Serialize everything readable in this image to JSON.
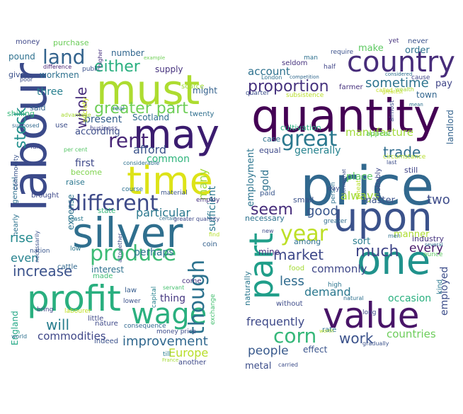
{
  "left_cloud": {
    "words": [
      {
        "text": "labour",
        "color": "#3b4a8a"
      },
      {
        "text": "silver",
        "color": "#2f6f8e"
      },
      {
        "text": "profit",
        "color": "#29af7f"
      },
      {
        "text": "must",
        "color": "#addc30"
      },
      {
        "text": "may",
        "color": "#3b1c6f"
      },
      {
        "text": "time",
        "color": "#dde318"
      },
      {
        "text": "wage",
        "color": "#2bb07f"
      },
      {
        "text": "produce",
        "color": "#3cbb75"
      },
      {
        "text": "different",
        "color": "#3e4a89"
      },
      {
        "text": "land",
        "color": "#33638d"
      },
      {
        "text": "rent",
        "color": "#482677"
      },
      {
        "text": "though",
        "color": "#2c728e"
      },
      {
        "text": "greater part",
        "color": "#6ece58"
      },
      {
        "text": "either",
        "color": "#29af7f"
      },
      {
        "text": "stock",
        "color": "#21908d"
      },
      {
        "text": "whole",
        "color": "#472d7b"
      },
      {
        "text": "increase",
        "color": "#3b528b"
      },
      {
        "text": "particular",
        "color": "#2a788e"
      },
      {
        "text": "improvement",
        "color": "#31688e"
      },
      {
        "text": "Europe",
        "color": "#b8de29"
      },
      {
        "text": "commodities",
        "color": "#3f4788"
      },
      {
        "text": "will",
        "color": "#287d8e"
      },
      {
        "text": "rise",
        "color": "#23898e"
      },
      {
        "text": "even",
        "color": "#26828e"
      },
      {
        "text": "many",
        "color": "#a2da37"
      },
      {
        "text": "sufficient",
        "color": "#2a778e"
      },
      {
        "text": "afford",
        "color": "#3a538b"
      },
      {
        "text": "present",
        "color": "#355f8d"
      },
      {
        "text": "according",
        "color": "#3d4e8a"
      },
      {
        "text": "perhaps",
        "color": "#2c738e"
      },
      {
        "text": "interest",
        "color": "#2d718e"
      },
      {
        "text": "common",
        "color": "#2fb47c"
      },
      {
        "text": "three",
        "color": "#277f8e"
      },
      {
        "text": "first",
        "color": "#3e4989"
      },
      {
        "text": "England",
        "color": "#22a785"
      },
      {
        "text": "expense",
        "color": "#2c738e"
      },
      {
        "text": "thing",
        "color": "#453781"
      },
      {
        "text": "twenty",
        "color": "#2e6e8e"
      },
      {
        "text": "Scotland",
        "color": "#2e6d8e"
      },
      {
        "text": "might",
        "color": "#34618d"
      },
      {
        "text": "supply",
        "color": "#46327e"
      },
      {
        "text": "number",
        "color": "#31668e"
      },
      {
        "text": "workmen",
        "color": "#2d708e"
      },
      {
        "text": "society",
        "color": "#c8e020"
      },
      {
        "text": "purchase",
        "color": "#6ccd5a"
      },
      {
        "text": "money",
        "color": "#3f4889"
      },
      {
        "text": "pound",
        "color": "#2d708e"
      },
      {
        "text": "give",
        "color": "#3b518b"
      },
      {
        "text": "said",
        "color": "#32658e"
      },
      {
        "text": "shilling",
        "color": "#35b779"
      },
      {
        "text": "raise",
        "color": "#2a768e"
      },
      {
        "text": "become",
        "color": "#7fd34e"
      },
      {
        "text": "state",
        "color": "#34b679"
      },
      {
        "text": "made",
        "color": "#3dbc74"
      },
      {
        "text": "law",
        "color": "#365c8d"
      },
      {
        "text": "little",
        "color": "#3f4889"
      },
      {
        "text": "nature",
        "color": "#3e4989"
      },
      {
        "text": "indeed",
        "color": "#3b528b"
      },
      {
        "text": "labourer",
        "color": "#c2df23"
      },
      {
        "text": "bring",
        "color": "#3f4788"
      },
      {
        "text": "coin",
        "color": "#34618d"
      },
      {
        "text": "come",
        "color": "#46337f"
      },
      {
        "text": "cattle",
        "color": "#31688e"
      },
      {
        "text": "nearly",
        "color": "#2c728e"
      },
      {
        "text": "brought",
        "color": "#3e4989"
      },
      {
        "text": "general",
        "color": "#2d708e"
      },
      {
        "text": "commodity",
        "color": "#3a548c"
      },
      {
        "text": "business",
        "color": "#404387"
      },
      {
        "text": "use",
        "color": "#3d4e8a"
      },
      {
        "text": "public",
        "color": "#3b518b"
      },
      {
        "text": "real",
        "color": "#2b748e"
      },
      {
        "text": "scarce",
        "color": "#a0da39"
      },
      {
        "text": "another",
        "color": "#3e4a89"
      },
      {
        "text": "till",
        "color": "#287d8e"
      },
      {
        "text": "money price",
        "color": "#3d4d8a"
      },
      {
        "text": "consequence",
        "color": "#31688e"
      },
      {
        "text": "exchange",
        "color": "#44bf70"
      },
      {
        "text": "course",
        "color": "#2c718e"
      },
      {
        "text": "material",
        "color": "#3a548c"
      },
      {
        "text": "employ",
        "color": "#46327e"
      },
      {
        "text": "fall",
        "color": "#404588"
      },
      {
        "text": "low",
        "color": "#2a778e"
      },
      {
        "text": "nation",
        "color": "#39568c"
      },
      {
        "text": "least",
        "color": "#2a788e"
      },
      {
        "text": "necessarily",
        "color": "#3b528b"
      },
      {
        "text": "altogether",
        "color": "#3d4e8a"
      },
      {
        "text": "considerable",
        "color": "#2d708e"
      },
      {
        "text": "advantage",
        "color": "#a8db34"
      },
      {
        "text": "supposed",
        "color": "#31688e"
      },
      {
        "text": "per cent",
        "color": "#56c667"
      },
      {
        "text": "difference",
        "color": "#482475"
      },
      {
        "text": "poor",
        "color": "#3d4e8a"
      },
      {
        "text": "higher",
        "color": "#46307e"
      },
      {
        "text": "example",
        "color": "#70cf57"
      },
      {
        "text": "lower",
        "color": "#3b518b"
      },
      {
        "text": "capital",
        "color": "#26828e"
      },
      {
        "text": "servant",
        "color": "#46c06f"
      },
      {
        "text": "world",
        "color": "#2d708e"
      },
      {
        "text": "France",
        "color": "#a5db36"
      },
      {
        "text": "find",
        "color": "#b5de2b"
      },
      {
        "text": "certain",
        "color": "#2e6d8e"
      },
      {
        "text": "greater quantity",
        "color": "#3e4989"
      }
    ]
  },
  "right_cloud": {
    "words": [
      {
        "text": "price",
        "color": "#31688e"
      },
      {
        "text": "quantity",
        "color": "#440154"
      },
      {
        "text": "upon",
        "color": "#3b528b"
      },
      {
        "text": "one",
        "color": "#20928c"
      },
      {
        "text": "value",
        "color": "#481467"
      },
      {
        "text": "country",
        "color": "#472c7a"
      },
      {
        "text": "part",
        "color": "#1f9e89"
      },
      {
        "text": "year",
        "color": "#bddf26"
      },
      {
        "text": "corn",
        "color": "#35b779"
      },
      {
        "text": "proportion",
        "color": "#46327e"
      },
      {
        "text": "great",
        "color": "#2a788e"
      },
      {
        "text": "seem",
        "color": "#472d7b"
      },
      {
        "text": "much",
        "color": "#404688"
      },
      {
        "text": "market",
        "color": "#3e4989"
      },
      {
        "text": "good",
        "color": "#39568c"
      },
      {
        "text": "work",
        "color": "#3b528b"
      },
      {
        "text": "trade",
        "color": "#2f6c8e"
      },
      {
        "text": "two",
        "color": "#3e4c8a"
      },
      {
        "text": "always",
        "color": "#a2da37"
      },
      {
        "text": "sometime",
        "color": "#2c738e"
      },
      {
        "text": "less",
        "color": "#2f6b8e"
      },
      {
        "text": "demand",
        "color": "#2a788e"
      },
      {
        "text": "manufacture",
        "color": "#a0da39"
      },
      {
        "text": "account",
        "color": "#2d718e"
      },
      {
        "text": "make",
        "color": "#5ec962"
      },
      {
        "text": "every",
        "color": "#48186a"
      },
      {
        "text": "people",
        "color": "#38598c"
      },
      {
        "text": "countries",
        "color": "#6ccd5a"
      },
      {
        "text": "commonly",
        "color": "#3f4788"
      },
      {
        "text": "frequently",
        "color": "#3e4989"
      },
      {
        "text": "generally",
        "color": "#26828e"
      },
      {
        "text": "place",
        "color": "#5ec962"
      },
      {
        "text": "gold",
        "color": "#2c728e"
      },
      {
        "text": "employment",
        "color": "#2b748e"
      },
      {
        "text": "master",
        "color": "#3b528b"
      },
      {
        "text": "sort",
        "color": "#287c8e"
      },
      {
        "text": "order",
        "color": "#2c718e"
      },
      {
        "text": "pay",
        "color": "#404588"
      },
      {
        "text": "occasion",
        "color": "#2ab07f"
      },
      {
        "text": "employed",
        "color": "#3d4e8a"
      },
      {
        "text": "manner",
        "color": "#addc30"
      },
      {
        "text": "industry",
        "color": "#46337f"
      },
      {
        "text": "landlord",
        "color": "#33638d"
      },
      {
        "text": "town",
        "color": "#32658e"
      },
      {
        "text": "metal",
        "color": "#3d4e8a"
      },
      {
        "text": "effect",
        "color": "#3a548c"
      },
      {
        "text": "naturally",
        "color": "#2a778e"
      },
      {
        "text": "mine",
        "color": "#46327e"
      },
      {
        "text": "among",
        "color": "#2d708e"
      },
      {
        "text": "necessary",
        "color": "#2c728e"
      },
      {
        "text": "small",
        "color": "#3b528b"
      },
      {
        "text": "equal",
        "color": "#3e4a89"
      },
      {
        "text": "case",
        "color": "#2d708e"
      },
      {
        "text": "cultivation",
        "color": "#29af7f"
      },
      {
        "text": "still",
        "color": "#404588"
      },
      {
        "text": "without",
        "color": "#3e4c8a"
      },
      {
        "text": "rate",
        "color": "#2b748e"
      },
      {
        "text": "food",
        "color": "#a5db36"
      },
      {
        "text": "paid",
        "color": "#39568c"
      },
      {
        "text": "seldom",
        "color": "#46327e"
      },
      {
        "text": "require",
        "color": "#3b518b"
      },
      {
        "text": "never",
        "color": "#3b528b"
      },
      {
        "text": "yet",
        "color": "#46327e"
      },
      {
        "text": "man",
        "color": "#2d708e"
      },
      {
        "text": "half",
        "color": "#404588"
      },
      {
        "text": "farmer",
        "color": "#46327e"
      },
      {
        "text": "subsistence",
        "color": "#b8de29"
      },
      {
        "text": "quarter",
        "color": "#3d4e8a"
      },
      {
        "text": "London",
        "color": "#2d708e"
      },
      {
        "text": "competition",
        "color": "#31688e"
      },
      {
        "text": "considered",
        "color": "#2d708e"
      },
      {
        "text": "cause",
        "color": "#404588"
      },
      {
        "text": "called",
        "color": "#c2df23"
      },
      {
        "text": "almost",
        "color": "#3d4e8a"
      },
      {
        "text": "appear",
        "color": "#5ec962"
      },
      {
        "text": "mean",
        "color": "#2d708e"
      },
      {
        "text": "circumstance",
        "color": "#b5de2b"
      },
      {
        "text": "probably",
        "color": "#3e4a89"
      },
      {
        "text": "somewhat",
        "color": "#3d4e8a"
      },
      {
        "text": "person",
        "color": "#2d708e"
      },
      {
        "text": "day",
        "color": "#3e4989"
      },
      {
        "text": "wheat",
        "color": "#b8de29"
      },
      {
        "text": "greater",
        "color": "#2f6c8e"
      },
      {
        "text": "new",
        "color": "#3e4a89"
      },
      {
        "text": "men",
        "color": "#2d708e"
      },
      {
        "text": "several",
        "color": "#2d708e"
      },
      {
        "text": "ounce",
        "color": "#5ec962"
      },
      {
        "text": "kind",
        "color": "#2a778e"
      },
      {
        "text": "high",
        "color": "#2b748e"
      },
      {
        "text": "long",
        "color": "#3e4989"
      },
      {
        "text": "natural",
        "color": "#2d708e"
      },
      {
        "text": "worth",
        "color": "#b5de2b"
      },
      {
        "text": "gradually",
        "color": "#3b528b"
      },
      {
        "text": "carried",
        "color": "#3d4e8a"
      },
      {
        "text": "last",
        "color": "#3d4e8a"
      },
      {
        "text": "greatest",
        "color": "#c2df23"
      },
      {
        "text": "wealth",
        "color": "#a8db34"
      }
    ]
  }
}
